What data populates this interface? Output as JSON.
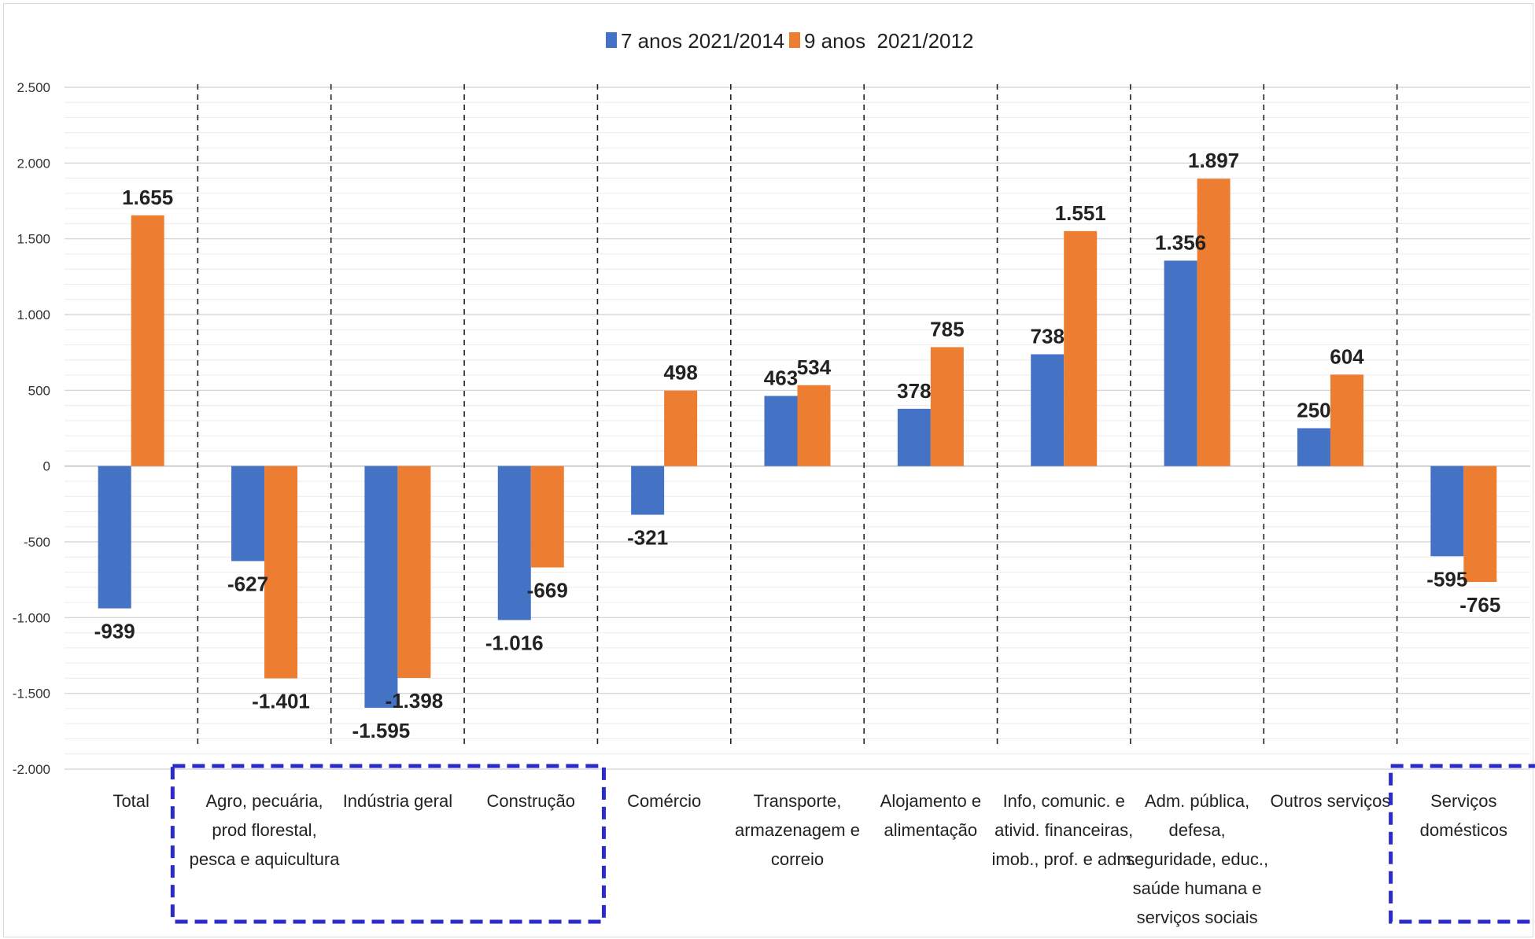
{
  "chart_data": {
    "type": "bar",
    "categories": [
      [
        "Total"
      ],
      [
        "Agro, pecuária,",
        "prod florestal,",
        "pesca e aquicultura"
      ],
      [
        "Indústria geral"
      ],
      [
        "Construção"
      ],
      [
        "Comércio"
      ],
      [
        "Transporte,",
        "armazenagem e",
        "correio"
      ],
      [
        "Alojamento e",
        "alimentação"
      ],
      [
        "Info, comunic. e",
        "ativid. financeiras,",
        "imob., prof. e adm."
      ],
      [
        "Adm. pública,",
        "defesa,",
        "seguridade, educ.,",
        "saúde humana e",
        "serviços sociais"
      ],
      [
        "Outros serviços"
      ],
      [
        "Serviços",
        "domésticos"
      ]
    ],
    "series": [
      {
        "name": "7 anos 2021/2014",
        "color": "#4472c4",
        "values": [
          -939,
          -627,
          -1595,
          -1016,
          -321,
          463,
          378,
          738,
          1356,
          250,
          -595
        ],
        "labels": [
          "-939",
          "-627",
          "-1.595",
          "-1.016",
          "-321",
          "463",
          "378",
          "738",
          "1.356",
          "250",
          "-595"
        ]
      },
      {
        "name": "9 anos  2021/2012",
        "color": "#ed7d31",
        "values": [
          1655,
          -1401,
          -1398,
          -669,
          498,
          534,
          785,
          1551,
          1897,
          604,
          -765
        ],
        "labels": [
          "1.655",
          "-1.401",
          "-1.398",
          "-669",
          "498",
          "534",
          "785",
          "1.551",
          "1.897",
          "604",
          "-765"
        ]
      }
    ],
    "yticks": [
      2500,
      2000,
      1500,
      1000,
      500,
      0,
      -500,
      -1000,
      -1500,
      -2000
    ],
    "ytick_labels": [
      "2.500",
      "2.000",
      "1.500",
      "1.000",
      "500",
      "0",
      "-500",
      "-1.000",
      "-1.500",
      "-2.000"
    ],
    "ylim": [
      -2000,
      2500
    ],
    "legend_position": "top",
    "grid": true,
    "highlight_boxes": "dashed blue boxes around Agro/Indústria/Construção and Serviços domésticos",
    "highlight_color": "#2b2bc9"
  }
}
